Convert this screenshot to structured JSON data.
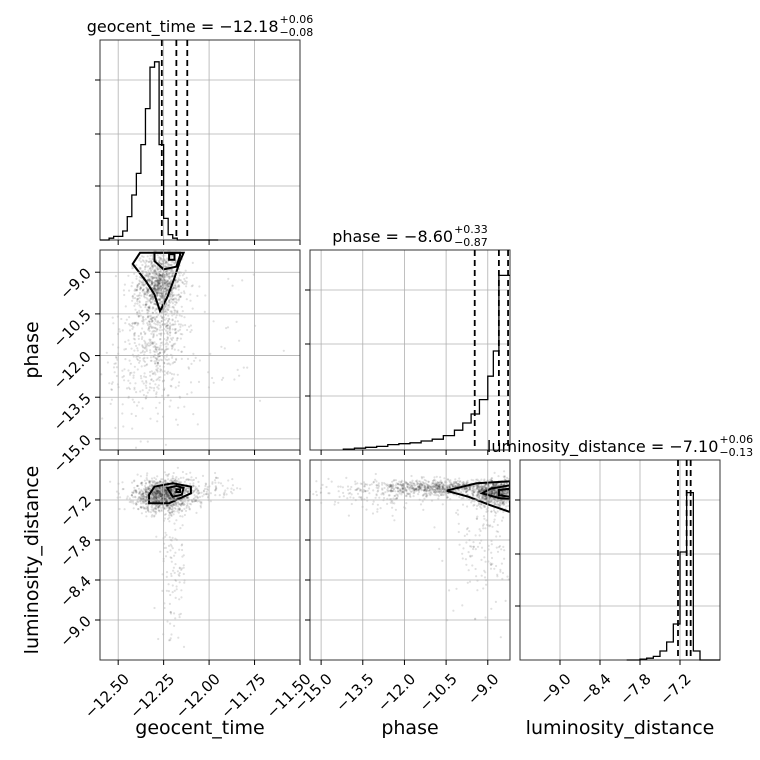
{
  "chart_data": {
    "type": "corner",
    "parameters": [
      {
        "name": "geocent_time",
        "axis_label": "geocent_time",
        "title": {
          "prefix": "geocent_time = ",
          "median": "−12.18",
          "plus": "+0.06",
          "minus": "−0.08"
        },
        "median": -12.18,
        "q_low": -12.26,
        "q_high": -12.12,
        "range": [
          -12.6,
          -11.5
        ],
        "ticks": [
          -12.5,
          -12.25,
          -12.0,
          -11.75,
          -11.5
        ],
        "tick_labels": [
          "−12.50",
          "−12.25",
          "−12.00",
          "−11.75",
          "−11.50"
        ],
        "hist": {
          "edges": [
            -12.6,
            -12.575,
            -12.55,
            -12.525,
            -12.5,
            -12.475,
            -12.45,
            -12.425,
            -12.4,
            -12.375,
            -12.35,
            -12.325,
            -12.3,
            -12.275,
            -12.25,
            -12.225,
            -12.2,
            -12.175,
            -12.15,
            -12.125,
            -12.1,
            -12.075,
            -12.05,
            -12.025,
            -12.0,
            -11.975,
            -11.95
          ],
          "counts": [
            0,
            0,
            0.01,
            0.02,
            0.02,
            0.05,
            0.13,
            0.25,
            0.37,
            0.53,
            0.73,
            0.96,
            0.99,
            0.53,
            0.12,
            0.03,
            0.01,
            0.0,
            0.0,
            0.0,
            0.0,
            0.0,
            0.0,
            0.0,
            0.0,
            0.0
          ]
        }
      },
      {
        "name": "phase",
        "axis_label": "phase",
        "title": {
          "prefix": "phase = ",
          "median": "−8.60",
          "plus": "+0.33",
          "minus": "−0.87"
        },
        "median": -8.6,
        "q_low": -9.47,
        "q_high": -8.27,
        "range": [
          -15.4,
          -8.2
        ],
        "ticks": [
          -15.0,
          -13.5,
          -12.0,
          -10.5,
          -9.0
        ],
        "tick_labels": [
          "−15.0",
          "−13.5",
          "−12.0",
          "−10.5",
          "−9.0"
        ],
        "hist": {
          "edges": [
            -14.2,
            -13.8,
            -13.4,
            -13.0,
            -12.6,
            -12.2,
            -11.8,
            -11.4,
            -11.0,
            -10.6,
            -10.2,
            -9.9,
            -9.6,
            -9.3,
            -9.0,
            -8.8,
            -8.6,
            -8.4,
            -8.2
          ],
          "counts": [
            0.005,
            0.01,
            0.015,
            0.02,
            0.03,
            0.035,
            0.04,
            0.05,
            0.06,
            0.08,
            0.11,
            0.15,
            0.2,
            0.28,
            0.41,
            0.55,
            0.97,
            0.97
          ]
        }
      },
      {
        "name": "luminosity_distance",
        "axis_label": "luminosity_distance",
        "title": {
          "prefix": "luminosity_distance = ",
          "median": "−7.10",
          "plus": "+0.06",
          "minus": "−0.13"
        },
        "median": -7.1,
        "q_low": -7.23,
        "q_high": -7.04,
        "range": [
          -9.6,
          -6.6
        ],
        "ticks": [
          -9.0,
          -8.4,
          -7.8,
          -7.2
        ],
        "tick_labels": [
          "−9.0",
          "−8.4",
          "−7.8",
          "−7.2"
        ],
        "hist": {
          "edges": [
            -8.0,
            -7.9,
            -7.8,
            -7.7,
            -7.6,
            -7.5,
            -7.4,
            -7.3,
            -7.2,
            -7.1,
            -7.0,
            -6.9,
            -6.8,
            -6.7,
            -6.6
          ],
          "counts": [
            0.0,
            0.0,
            0.005,
            0.01,
            0.02,
            0.05,
            0.1,
            0.2,
            0.6,
            0.93,
            0.05,
            0.0,
            0.0,
            0.0
          ]
        }
      }
    ],
    "pairs": [
      {
        "x": "geocent_time",
        "y": "phase",
        "x_range": [
          -12.6,
          -11.5
        ],
        "y_range": [
          -15.4,
          -8.2
        ],
        "y_ticks": [
          -15.0,
          -13.5,
          -12.0,
          -10.5,
          -9.0
        ],
        "y_tick_labels": [
          "−15.0",
          "−13.5",
          "−12.0",
          "−10.5",
          "−9.0"
        ],
        "cloud": [
          {
            "cx": -12.27,
            "cy": -9.4,
            "sx": 0.06,
            "sy": 0.55,
            "n": 900
          },
          {
            "cx": -12.28,
            "cy": -10.9,
            "sx": 0.08,
            "sy": 1.1,
            "n": 500
          },
          {
            "cx": -12.35,
            "cy": -12.5,
            "sx": 0.12,
            "sy": 1.2,
            "n": 200
          },
          {
            "cx": -12.05,
            "cy": -11.8,
            "sx": 0.18,
            "sy": 1.5,
            "n": 60
          }
        ],
        "contours": [
          [
            [
              -12.38,
              -8.3
            ],
            [
              -12.42,
              -8.7
            ],
            [
              -12.35,
              -9.3
            ],
            [
              -12.3,
              -9.8
            ],
            [
              -12.27,
              -10.4
            ],
            [
              -12.23,
              -9.9
            ],
            [
              -12.19,
              -9.2
            ],
            [
              -12.16,
              -8.6
            ],
            [
              -12.14,
              -8.3
            ]
          ],
          [
            [
              -12.3,
              -8.3
            ],
            [
              -12.3,
              -8.6
            ],
            [
              -12.25,
              -8.9
            ],
            [
              -12.18,
              -8.8
            ],
            [
              -12.16,
              -8.4
            ],
            [
              -12.16,
              -8.3
            ]
          ],
          [
            [
              -12.22,
              -8.35
            ],
            [
              -12.22,
              -8.55
            ],
            [
              -12.19,
              -8.55
            ],
            [
              -12.19,
              -8.35
            ]
          ]
        ]
      },
      {
        "x": "geocent_time",
        "y": "luminosity_distance",
        "x_range": [
          -12.6,
          -11.5
        ],
        "y_range": [
          -9.6,
          -6.6
        ],
        "y_ticks": [
          -9.0,
          -8.4,
          -7.8,
          -7.2
        ],
        "y_tick_labels": [
          "−9.0",
          "−8.4",
          "−7.8",
          "−7.2"
        ],
        "cloud": [
          {
            "cx": -12.25,
            "cy": -7.13,
            "sx": 0.08,
            "sy": 0.12,
            "n": 1200
          },
          {
            "cx": -12.2,
            "cy": -8.2,
            "sx": 0.04,
            "sy": 0.6,
            "n": 130
          },
          {
            "cx": -12.1,
            "cy": -7.05,
            "sx": 0.15,
            "sy": 0.1,
            "n": 150
          }
        ],
        "contours": [
          [
            [
              -12.33,
              -7.12
            ],
            [
              -12.3,
              -7.0
            ],
            [
              -12.2,
              -6.95
            ],
            [
              -12.1,
              -7.0
            ],
            [
              -12.1,
              -7.1
            ],
            [
              -12.22,
              -7.25
            ],
            [
              -12.33,
              -7.25
            ]
          ],
          [
            [
              -12.23,
              -7.02
            ],
            [
              -12.18,
              -6.99
            ],
            [
              -12.14,
              -7.02
            ],
            [
              -12.15,
              -7.12
            ],
            [
              -12.2,
              -7.15
            ]
          ],
          [
            [
              -12.18,
              -7.04
            ],
            [
              -12.16,
              -7.04
            ],
            [
              -12.16,
              -7.08
            ],
            [
              -12.18,
              -7.08
            ]
          ]
        ]
      },
      {
        "x": "phase",
        "y": "luminosity_distance",
        "x_range": [
          -15.4,
          -8.2
        ],
        "y_range": [
          -9.6,
          -6.6
        ],
        "cloud": [
          {
            "cx": -10.5,
            "cy": -7.02,
            "sx": 1.4,
            "sy": 0.06,
            "n": 900
          },
          {
            "cx": -8.7,
            "cy": -7.1,
            "sx": 0.4,
            "sy": 0.1,
            "n": 700
          },
          {
            "cx": -9.0,
            "cy": -7.8,
            "sx": 0.6,
            "sy": 0.6,
            "n": 180
          },
          {
            "cx": -13.0,
            "cy": -7.15,
            "sx": 1.2,
            "sy": 0.15,
            "n": 120
          }
        ],
        "contours": [
          [
            [
              -8.2,
              -6.92
            ],
            [
              -9.4,
              -6.95
            ],
            [
              -10.5,
              -7.06
            ],
            [
              -9.7,
              -7.15
            ],
            [
              -8.9,
              -7.28
            ],
            [
              -8.2,
              -7.38
            ]
          ],
          [
            [
              -8.2,
              -6.98
            ],
            [
              -8.9,
              -7.03
            ],
            [
              -9.2,
              -7.1
            ],
            [
              -8.6,
              -7.17
            ],
            [
              -8.2,
              -7.19
            ]
          ],
          [
            [
              -8.2,
              -7.03
            ],
            [
              -8.6,
              -7.05
            ],
            [
              -8.6,
              -7.13
            ],
            [
              -8.2,
              -7.15
            ]
          ]
        ]
      }
    ]
  }
}
